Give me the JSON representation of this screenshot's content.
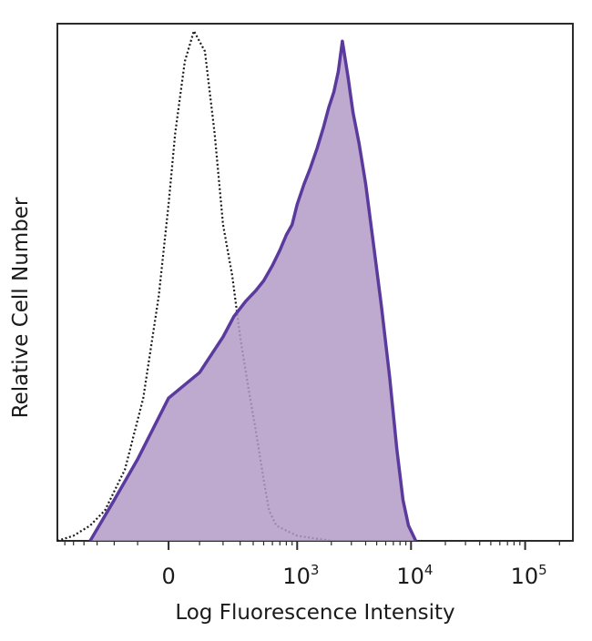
{
  "chart_data": {
    "type": "area",
    "title": "",
    "xlabel": "Log Fluorescence Intensity",
    "ylabel": "Relative Cell Number",
    "x_scale": "biexponential",
    "x_ticks": [
      {
        "value": 0,
        "label": "0"
      },
      {
        "value": 1000,
        "label": "10",
        "sup": "3"
      },
      {
        "value": 10000,
        "label": "10",
        "sup": "4"
      },
      {
        "value": 100000,
        "label": "10",
        "sup": "5"
      }
    ],
    "xlim": [
      -700,
      262144
    ],
    "ylim": [
      0,
      100
    ],
    "grid": false,
    "legend": "none",
    "series": [
      {
        "style": "dotted-outline",
        "color": "#1a1a1a",
        "points": [
          [
            -700,
            0
          ],
          [
            -500,
            1
          ],
          [
            -350,
            3
          ],
          [
            -250,
            6
          ],
          [
            -150,
            14
          ],
          [
            -80,
            28
          ],
          [
            -30,
            48
          ],
          [
            0,
            66
          ],
          [
            20,
            80
          ],
          [
            50,
            94
          ],
          [
            80,
            100
          ],
          [
            120,
            96
          ],
          [
            160,
            80
          ],
          [
            200,
            62
          ],
          [
            250,
            52
          ],
          [
            300,
            40
          ],
          [
            360,
            30
          ],
          [
            420,
            22
          ],
          [
            500,
            12
          ],
          [
            560,
            6
          ],
          [
            650,
            3
          ],
          [
            800,
            2
          ],
          [
            1000,
            1
          ],
          [
            1400,
            0.5
          ],
          [
            2000,
            0
          ]
        ]
      },
      {
        "style": "filled",
        "color": "#5b3a9e",
        "fill": "#b39bc6",
        "points": [
          [
            -350,
            0
          ],
          [
            -200,
            8
          ],
          [
            -100,
            16
          ],
          [
            0,
            28
          ],
          [
            100,
            33
          ],
          [
            200,
            40
          ],
          [
            260,
            44
          ],
          [
            340,
            47
          ],
          [
            420,
            49
          ],
          [
            500,
            51
          ],
          [
            600,
            54
          ],
          [
            700,
            57
          ],
          [
            800,
            60
          ],
          [
            900,
            62
          ],
          [
            1000,
            66
          ],
          [
            1150,
            70
          ],
          [
            1300,
            73
          ],
          [
            1500,
            77
          ],
          [
            1700,
            81
          ],
          [
            1900,
            85
          ],
          [
            2100,
            88
          ],
          [
            2300,
            92
          ],
          [
            2500,
            98
          ],
          [
            2800,
            91
          ],
          [
            3100,
            84
          ],
          [
            3500,
            78
          ],
          [
            4000,
            70
          ],
          [
            4700,
            58
          ],
          [
            5500,
            46
          ],
          [
            6500,
            32
          ],
          [
            7500,
            18
          ],
          [
            8500,
            8
          ],
          [
            9500,
            3
          ],
          [
            11000,
            0
          ]
        ]
      }
    ]
  }
}
